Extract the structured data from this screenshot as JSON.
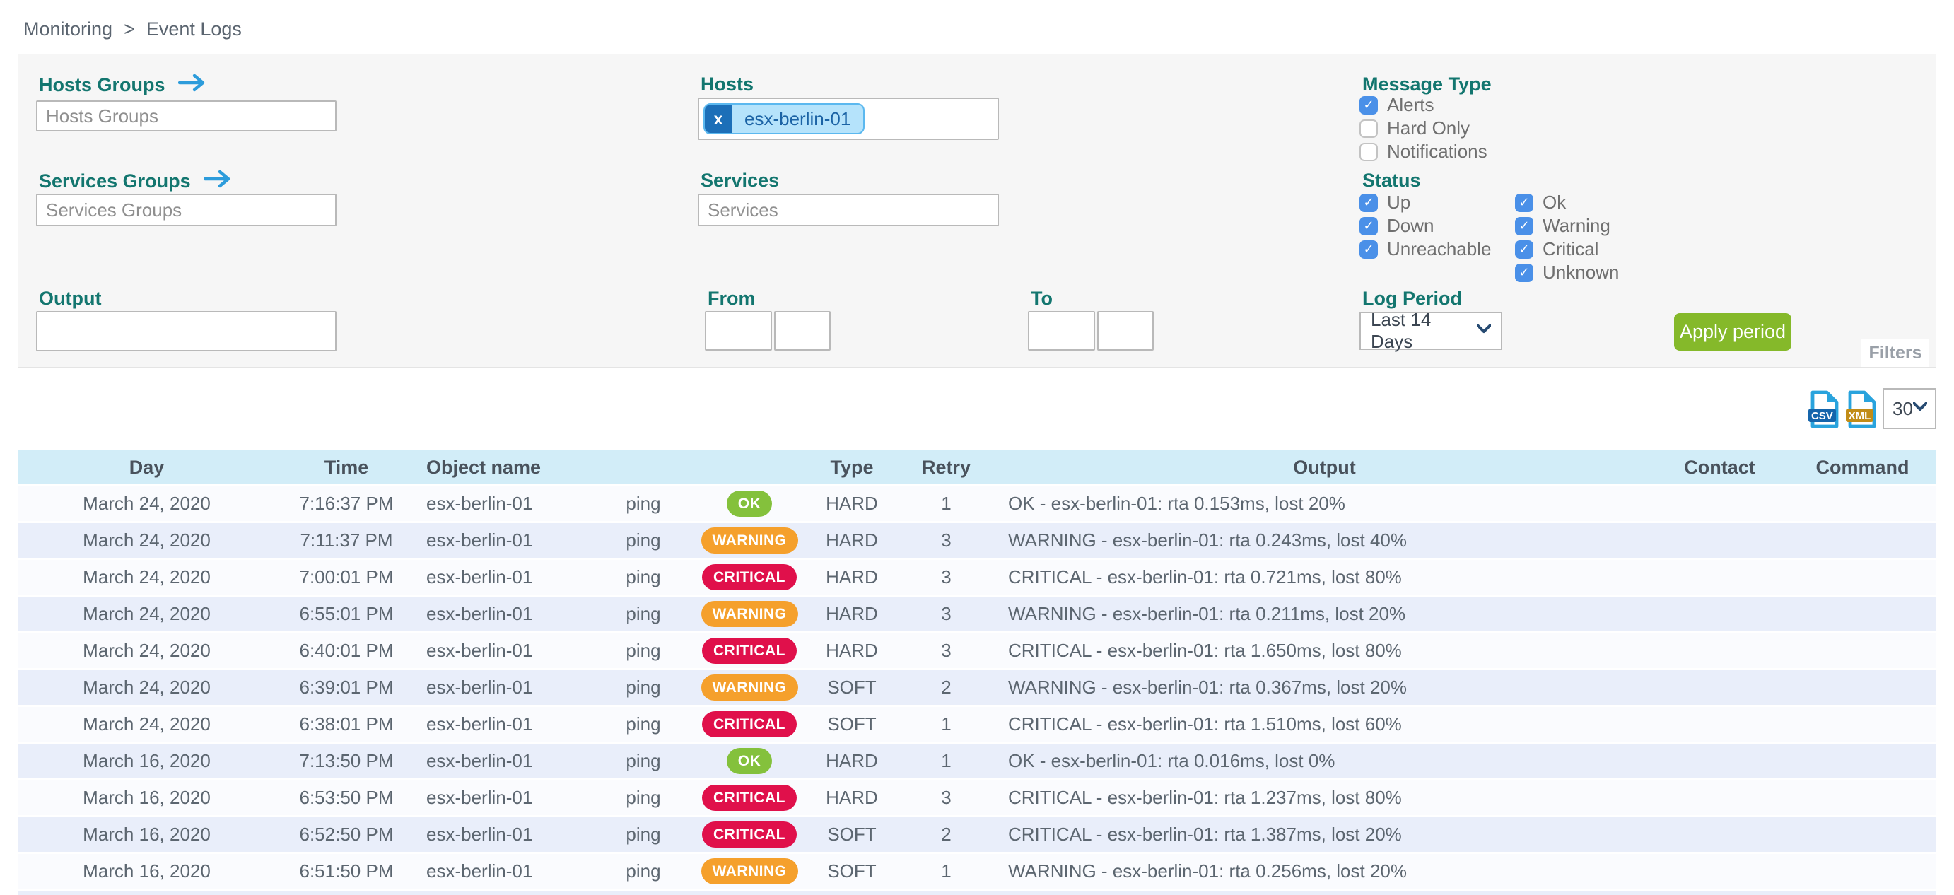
{
  "breadcrumb": {
    "items": [
      "Monitoring",
      "Event Logs"
    ],
    "separator": ">"
  },
  "filter_panel": {
    "hosts_groups_label": "Hosts Groups",
    "hosts_groups_placeholder": "Hosts Groups",
    "services_groups_label": "Services Groups",
    "services_groups_placeholder": "Services Groups",
    "output_label": "Output",
    "hosts_label": "Hosts",
    "hosts_selected": [
      "esx-berlin-01"
    ],
    "hosts_chip_remove": "x",
    "services_label": "Services",
    "services_placeholder": "Services",
    "from_label": "From",
    "to_label": "To",
    "message_type_label": "Message Type",
    "message_type_options": [
      {
        "label": "Alerts",
        "checked": true
      },
      {
        "label": "Hard Only",
        "checked": false
      },
      {
        "label": "Notifications",
        "checked": false
      }
    ],
    "status_label": "Status",
    "status_options_col1": [
      {
        "label": "Up",
        "checked": true
      },
      {
        "label": "Down",
        "checked": true
      },
      {
        "label": "Unreachable",
        "checked": true
      }
    ],
    "status_options_col2": [
      {
        "label": "Ok",
        "checked": true
      },
      {
        "label": "Warning",
        "checked": true
      },
      {
        "label": "Critical",
        "checked": true
      },
      {
        "label": "Unknown",
        "checked": true
      }
    ],
    "log_period_label": "Log Period",
    "log_period_value": "Last 14 Days",
    "apply_button_label": "Apply period",
    "filters_tab_label": "Filters"
  },
  "toolbar": {
    "csv_icon_label": "CSV",
    "xml_icon_label": "XML",
    "page_size_value": "30"
  },
  "table": {
    "columns": [
      "Day",
      "Time",
      "Object name",
      "",
      "",
      "Type",
      "Retry",
      "Output",
      "Contact",
      "Command"
    ],
    "rows": [
      {
        "day": "March 24, 2020",
        "time": "7:16:37 PM",
        "object": "esx-berlin-01",
        "service": "ping",
        "status": "OK",
        "type": "HARD",
        "retry": "1",
        "output": "OK - esx-berlin-01: rta 0.153ms, lost 20%",
        "contact": "",
        "command": ""
      },
      {
        "day": "March 24, 2020",
        "time": "7:11:37 PM",
        "object": "esx-berlin-01",
        "service": "ping",
        "status": "WARNING",
        "type": "HARD",
        "retry": "3",
        "output": "WARNING - esx-berlin-01: rta 0.243ms, lost 40%",
        "contact": "",
        "command": ""
      },
      {
        "day": "March 24, 2020",
        "time": "7:00:01 PM",
        "object": "esx-berlin-01",
        "service": "ping",
        "status": "CRITICAL",
        "type": "HARD",
        "retry": "3",
        "output": "CRITICAL - esx-berlin-01: rta 0.721ms, lost 80%",
        "contact": "",
        "command": ""
      },
      {
        "day": "March 24, 2020",
        "time": "6:55:01 PM",
        "object": "esx-berlin-01",
        "service": "ping",
        "status": "WARNING",
        "type": "HARD",
        "retry": "3",
        "output": "WARNING - esx-berlin-01: rta 0.211ms, lost 20%",
        "contact": "",
        "command": ""
      },
      {
        "day": "March 24, 2020",
        "time": "6:40:01 PM",
        "object": "esx-berlin-01",
        "service": "ping",
        "status": "CRITICAL",
        "type": "HARD",
        "retry": "3",
        "output": "CRITICAL - esx-berlin-01: rta 1.650ms, lost 80%",
        "contact": "",
        "command": ""
      },
      {
        "day": "March 24, 2020",
        "time": "6:39:01 PM",
        "object": "esx-berlin-01",
        "service": "ping",
        "status": "WARNING",
        "type": "SOFT",
        "retry": "2",
        "output": "WARNING - esx-berlin-01: rta 0.367ms, lost 20%",
        "contact": "",
        "command": ""
      },
      {
        "day": "March 24, 2020",
        "time": "6:38:01 PM",
        "object": "esx-berlin-01",
        "service": "ping",
        "status": "CRITICAL",
        "type": "SOFT",
        "retry": "1",
        "output": "CRITICAL - esx-berlin-01: rta 1.510ms, lost 60%",
        "contact": "",
        "command": ""
      },
      {
        "day": "March 16, 2020",
        "time": "7:13:50 PM",
        "object": "esx-berlin-01",
        "service": "ping",
        "status": "OK",
        "type": "HARD",
        "retry": "1",
        "output": "OK - esx-berlin-01: rta 0.016ms, lost 0%",
        "contact": "",
        "command": ""
      },
      {
        "day": "March 16, 2020",
        "time": "6:53:50 PM",
        "object": "esx-berlin-01",
        "service": "ping",
        "status": "CRITICAL",
        "type": "HARD",
        "retry": "3",
        "output": "CRITICAL - esx-berlin-01: rta 1.237ms, lost 80%",
        "contact": "",
        "command": ""
      },
      {
        "day": "March 16, 2020",
        "time": "6:52:50 PM",
        "object": "esx-berlin-01",
        "service": "ping",
        "status": "CRITICAL",
        "type": "SOFT",
        "retry": "2",
        "output": "CRITICAL - esx-berlin-01: rta 1.387ms, lost 20%",
        "contact": "",
        "command": ""
      },
      {
        "day": "March 16, 2020",
        "time": "6:51:50 PM",
        "object": "esx-berlin-01",
        "service": "ping",
        "status": "WARNING",
        "type": "SOFT",
        "retry": "1",
        "output": "WARNING - esx-berlin-01: rta 0.256ms, lost 20%",
        "contact": "",
        "command": ""
      }
    ]
  },
  "colors": {
    "label_teal": "#13766f",
    "link_blue": "#2d9cdb",
    "checkbox_blue": "#4a90e8",
    "apply_green": "#85b92a",
    "table_header_blue": "#d2edf8",
    "row_alt_blue": "#e9eefa",
    "badge_ok": "#84c13c",
    "badge_warning": "#f5a02c",
    "badge_critical": "#e0104b",
    "chip_bg": "#b5e3fb",
    "chip_border": "#5bb8ef",
    "chip_text": "#1b63a5",
    "chip_remove_bg": "#1c6fb8"
  }
}
